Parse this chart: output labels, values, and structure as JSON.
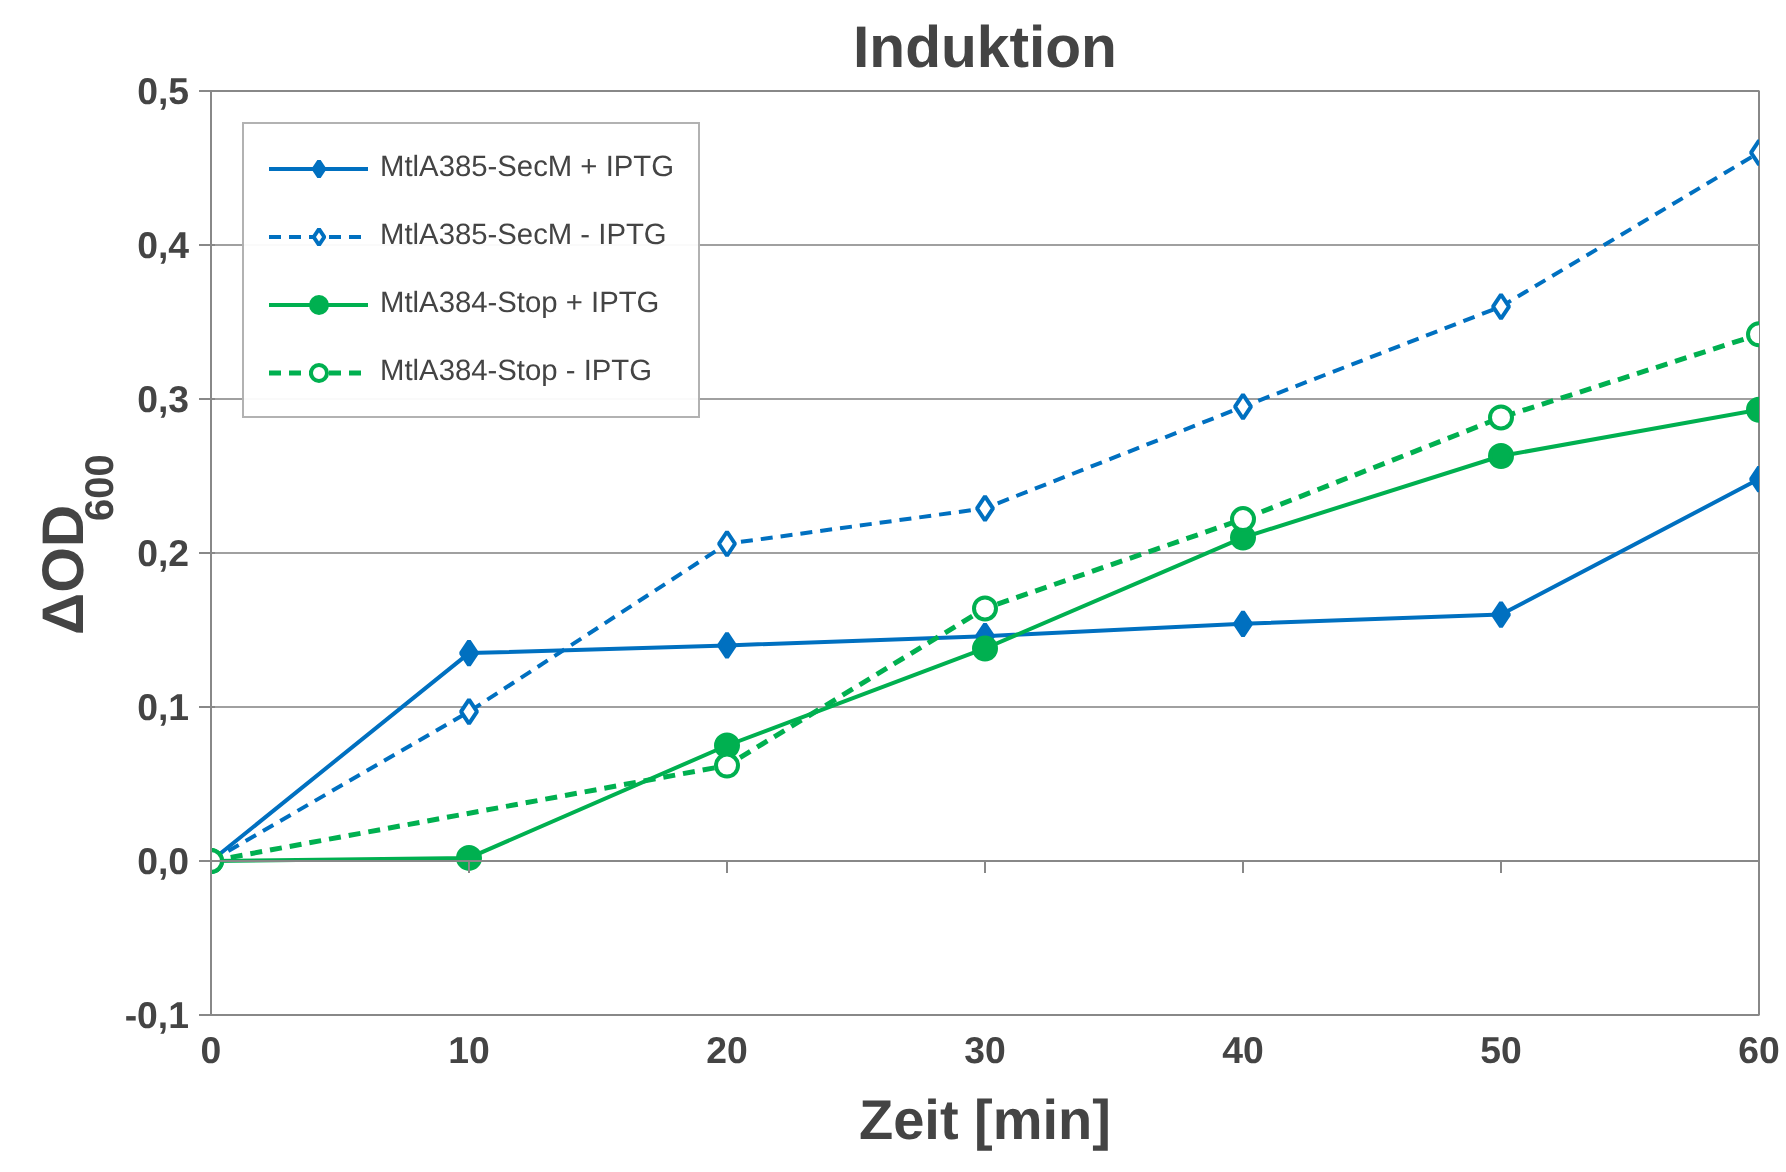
{
  "chart_data": {
    "type": "line",
    "title": "Induktion",
    "xlabel": "Zeit [min]",
    "ylabel": "ΔOD$_{600}$",
    "x": [
      0,
      10,
      20,
      30,
      40,
      50,
      60
    ],
    "series": [
      {
        "name": "MtlA385-SecM + IPTG",
        "color": "#0070c0",
        "marker": "diamond",
        "line_style": "solid",
        "values": [
          0,
          0.135,
          0.14,
          0.146,
          0.154,
          0.16,
          0.248
        ]
      },
      {
        "name": "MtlA385-SecM - IPTG",
        "color": "#0070c0",
        "marker": "diamond",
        "line_style": "dashed",
        "values": [
          0,
          0.097,
          0.206,
          0.229,
          0.295,
          0.36,
          0.46
        ]
      },
      {
        "name": "MtlA384-Stop + IPTG",
        "color": "#00b050",
        "marker": "circle",
        "line_style": "solid",
        "values": [
          0,
          0.002,
          0.075,
          0.138,
          0.21,
          0.263,
          0.293
        ]
      },
      {
        "name": "MtlA384-Stop - IPTG",
        "color": "#00b050",
        "marker": "circle",
        "line_style": "dashed",
        "values": [
          0,
          null,
          0.062,
          0.164,
          0.222,
          0.288,
          0.342
        ]
      }
    ],
    "xlim": [
      0,
      60
    ],
    "ylim": [
      -0.1,
      0.5
    ],
    "xticks": [
      0,
      10,
      20,
      30,
      40,
      50,
      60
    ],
    "yticks": [
      {
        "value": -0.1,
        "label": "-0,1"
      },
      {
        "value": 0,
        "label": "0,0"
      },
      {
        "value": 0.1,
        "label": "0,1"
      },
      {
        "value": 0.2,
        "label": "0,2"
      },
      {
        "value": 0.3,
        "label": "0,3"
      },
      {
        "value": 0.4,
        "label": "0,4"
      },
      {
        "value": 0.5,
        "label": "0,5"
      }
    ],
    "grid": "y",
    "legend": "top left"
  }
}
